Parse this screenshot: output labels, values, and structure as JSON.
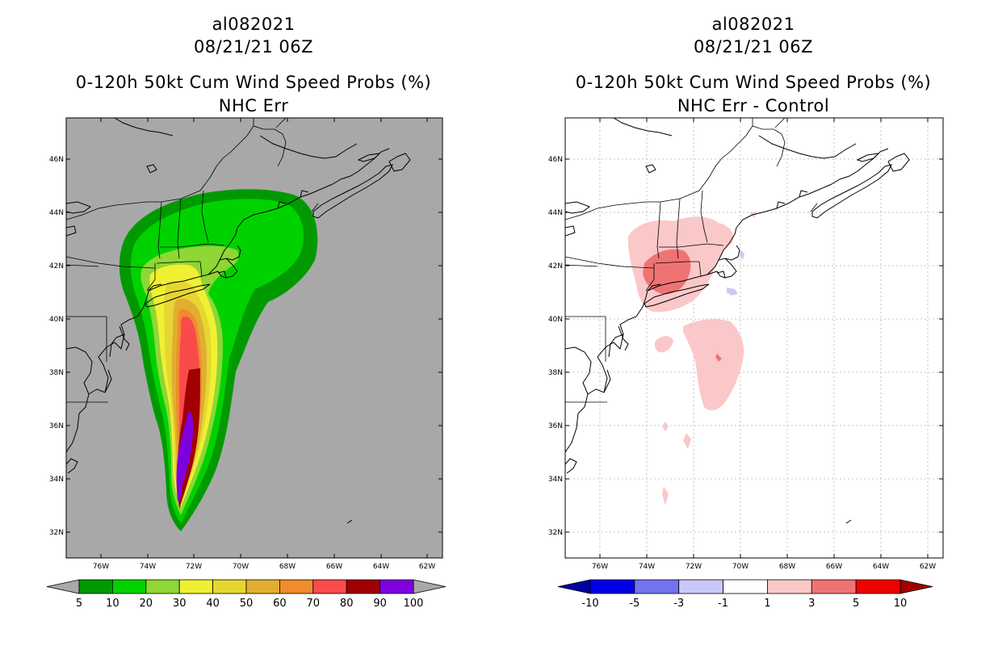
{
  "left_panel": {
    "storm_id": "al082021",
    "datetime": "08/21/21 06Z",
    "product": "0-120h 50kt Cum Wind Speed Probs (%)",
    "subtitle": "NHC Err",
    "background_color": "#a8a8a8",
    "colorbar": {
      "labels": [
        "5",
        "10",
        "20",
        "30",
        "40",
        "50",
        "60",
        "70",
        "80",
        "90",
        "100"
      ],
      "colors": [
        "#009a00",
        "#00d200",
        "#8fd636",
        "#f0f032",
        "#e6d632",
        "#e1ae32",
        "#f08c2d",
        "#fa4b4b",
        "#a00000",
        "#7f00df"
      ],
      "end_colors": [
        "#a8a8a8",
        "#a8a8a8"
      ]
    }
  },
  "right_panel": {
    "storm_id": "al082021",
    "datetime": "08/21/21 06Z",
    "product": "0-120h 50kt Cum Wind Speed Probs (%)",
    "subtitle": "NHC Err - Control",
    "background_color": "#ffffff",
    "colorbar": {
      "labels": [
        "-10",
        "-5",
        "-3",
        "-1",
        "1",
        "3",
        "5",
        "10"
      ],
      "colors": [
        "#0000e6",
        "#7373f0",
        "#c8c8fa",
        "#ffffff",
        "#fac8c8",
        "#f07373",
        "#f00000"
      ],
      "end_colors": [
        "#0000a0",
        "#a00000"
      ]
    }
  },
  "axes": {
    "lat_ticks": [
      "32N",
      "34N",
      "36N",
      "38N",
      "40N",
      "42N",
      "44N",
      "46N"
    ],
    "lon_ticks": [
      "76W",
      "74W",
      "72W",
      "70W",
      "68W",
      "66W",
      "64W",
      "62W"
    ]
  }
}
